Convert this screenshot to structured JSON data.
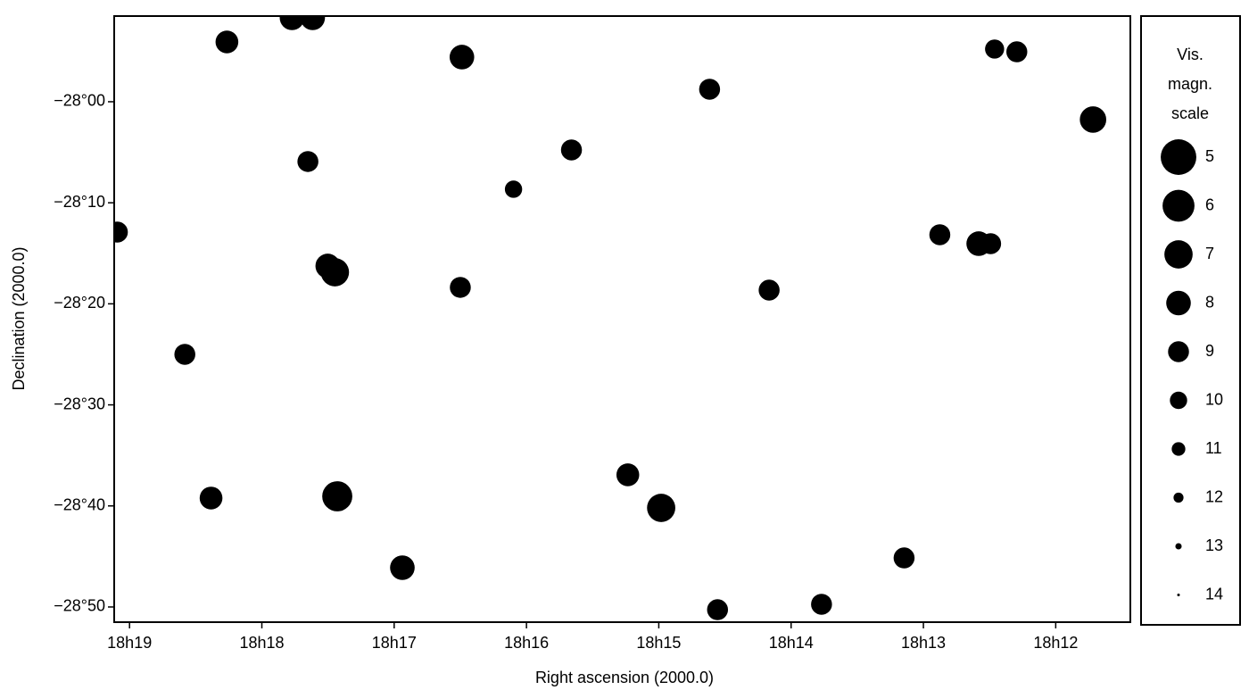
{
  "chart_data": {
    "type": "scatter",
    "x_label": "Right ascension (2000.0)",
    "y_label": "Declination (2000.0)",
    "color": "#000000",
    "x_reversed": true,
    "xlim": [
      18.3186,
      18.1906
    ],
    "ylim": [
      -28.8584,
      -27.8587
    ],
    "xticks": [
      {
        "value": 18.316667,
        "label": "18h19"
      },
      {
        "value": 18.3,
        "label": "18h18"
      },
      {
        "value": 18.283333,
        "label": "18h17"
      },
      {
        "value": 18.266667,
        "label": "18h16"
      },
      {
        "value": 18.25,
        "label": "18h15"
      },
      {
        "value": 18.233333,
        "label": "18h14"
      },
      {
        "value": 18.216667,
        "label": "18h13"
      },
      {
        "value": 18.2,
        "label": "18h12"
      }
    ],
    "yticks": [
      {
        "value": -28.0,
        "label": "−28°00"
      },
      {
        "value": -28.166667,
        "label": "−28°10"
      },
      {
        "value": -28.333333,
        "label": "−28°20"
      },
      {
        "value": -28.5,
        "label": "−28°30"
      },
      {
        "value": -28.666667,
        "label": "−28°40"
      },
      {
        "value": -28.833333,
        "label": "−28°50"
      }
    ],
    "x": [
      18.2962,
      18.2936,
      18.3044,
      18.2748,
      18.2436,
      18.1953,
      18.2942,
      18.2097,
      18.2082,
      18.2908,
      18.2917,
      18.3182,
      18.3097,
      18.2905,
      18.2497,
      18.2539,
      18.2823,
      18.3064,
      18.2191,
      18.2295,
      18.2426,
      18.275,
      18.2361,
      18.261,
      18.2683,
      18.2146,
      18.2077,
      18.2049
    ],
    "y": [
      -27.8616,
      -27.8616,
      -27.9014,
      -27.9264,
      -27.9794,
      -28.0294,
      -28.0986,
      -28.2341,
      -28.2341,
      -28.2812,
      -28.2709,
      -28.215,
      -28.4167,
      -28.6508,
      -28.6699,
      -28.6154,
      -28.7686,
      -28.6537,
      -28.7524,
      -28.8289,
      -28.8378,
      -28.3062,
      -28.3107,
      -28.0795,
      -28.1443,
      -28.2194,
      -27.9131,
      -27.9176
    ],
    "magnitudes": [
      8,
      8,
      8.5,
      8,
      9,
      7.5,
      9,
      8,
      9,
      7,
      8,
      9,
      9,
      6.5,
      7,
      8.5,
      8,
      8.5,
      9,
      9,
      9,
      9,
      9,
      9,
      10,
      9,
      9.5,
      9
    ],
    "legend": {
      "title": [
        "Vis.",
        "magn.",
        "scale"
      ],
      "magnitudes": [
        5,
        6,
        7,
        8,
        9,
        10,
        11,
        12,
        13,
        14
      ]
    }
  }
}
